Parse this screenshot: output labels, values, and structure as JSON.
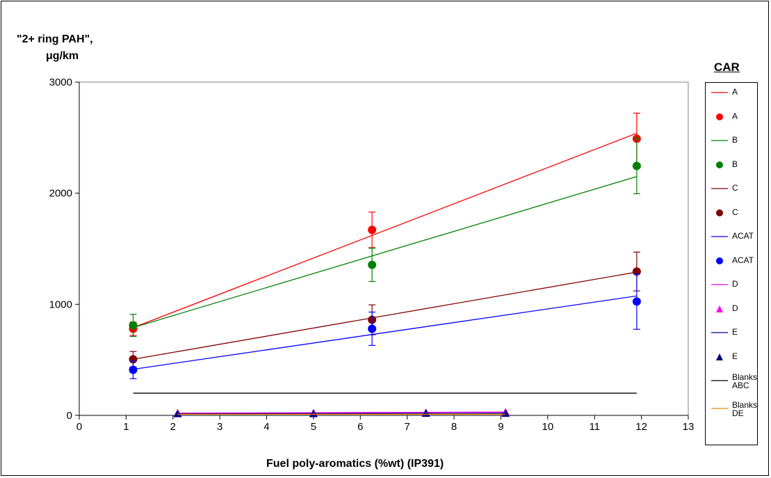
{
  "chart_data": {
    "type": "scatter",
    "ylabel_lines": [
      "\"2+ ring PAH\",",
      "μg/km"
    ],
    "xlabel": "Fuel poly-aromatics (%wt) (IP391)",
    "xlim": [
      0,
      13
    ],
    "ylim": [
      0,
      3000
    ],
    "x_ticks": [
      0,
      1,
      2,
      3,
      4,
      5,
      6,
      7,
      8,
      9,
      10,
      11,
      12,
      13
    ],
    "y_ticks": [
      0,
      1000,
      2000,
      3000
    ],
    "grid": false,
    "legend_title": "CAR",
    "legend_position": "right",
    "series": [
      {
        "name": "A",
        "kind": "line",
        "color": "#ff0000",
        "x": [
          1.15,
          11.9
        ],
        "y": [
          790,
          2540
        ]
      },
      {
        "name": "A",
        "kind": "points",
        "marker": "circle",
        "color": "#ff0000",
        "x": [
          1.15,
          6.25,
          11.9
        ],
        "y": [
          780,
          1670,
          2490
        ],
        "err": [
          60,
          160,
          230
        ]
      },
      {
        "name": "B",
        "kind": "line",
        "color": "#008000",
        "x": [
          1.15,
          11.9
        ],
        "y": [
          790,
          2150
        ]
      },
      {
        "name": "B",
        "kind": "points",
        "marker": "circle",
        "color": "#008000",
        "x": [
          1.15,
          6.25,
          11.9
        ],
        "y": [
          810,
          1355,
          2245
        ],
        "err": [
          100,
          150,
          250
        ]
      },
      {
        "name": "C",
        "kind": "line",
        "color": "#800000",
        "x": [
          1.15,
          11.9
        ],
        "y": [
          505,
          1290
        ]
      },
      {
        "name": "C",
        "kind": "points",
        "marker": "circle",
        "color": "#800000",
        "x": [
          1.15,
          6.25,
          11.9
        ],
        "y": [
          505,
          860,
          1295
        ],
        "err": [
          70,
          135,
          175
        ]
      },
      {
        "name": "ACAT",
        "kind": "line",
        "color": "#0000ff",
        "x": [
          1.15,
          11.9
        ],
        "y": [
          415,
          1075
        ]
      },
      {
        "name": "ACAT",
        "kind": "points",
        "marker": "circle",
        "color": "#0000ff",
        "x": [
          1.15,
          6.25,
          11.9
        ],
        "y": [
          410,
          780,
          1025
        ],
        "err": [
          80,
          150,
          250
        ]
      },
      {
        "name": "D",
        "kind": "line",
        "color": "#ff00ff",
        "x": [
          2.1,
          9.1
        ],
        "y": [
          20,
          30
        ]
      },
      {
        "name": "D",
        "kind": "points",
        "marker": "triangle",
        "color": "#ff00ff",
        "x": [
          2.1,
          5.0,
          7.4,
          9.1
        ],
        "y": [
          20,
          22,
          25,
          28
        ],
        "err": [
          0,
          0,
          0,
          0
        ]
      },
      {
        "name": "E",
        "kind": "line",
        "color": "#000080",
        "x": [
          2.1,
          9.1
        ],
        "y": [
          15,
          20
        ]
      },
      {
        "name": "E",
        "kind": "points",
        "marker": "triangle",
        "color": "#000080",
        "x": [
          2.1,
          5.0,
          7.4,
          9.1
        ],
        "y": [
          15,
          15,
          18,
          18
        ],
        "err": [
          0,
          0,
          0,
          0
        ]
      },
      {
        "name": "Blanks ABC",
        "kind": "line",
        "color": "#000000",
        "x": [
          1.15,
          11.9
        ],
        "y": [
          200,
          200
        ]
      },
      {
        "name": "Blanks DE",
        "kind": "line",
        "color": "#ff8000",
        "x": [
          2.1,
          9.1
        ],
        "y": [
          10,
          10
        ]
      }
    ]
  }
}
